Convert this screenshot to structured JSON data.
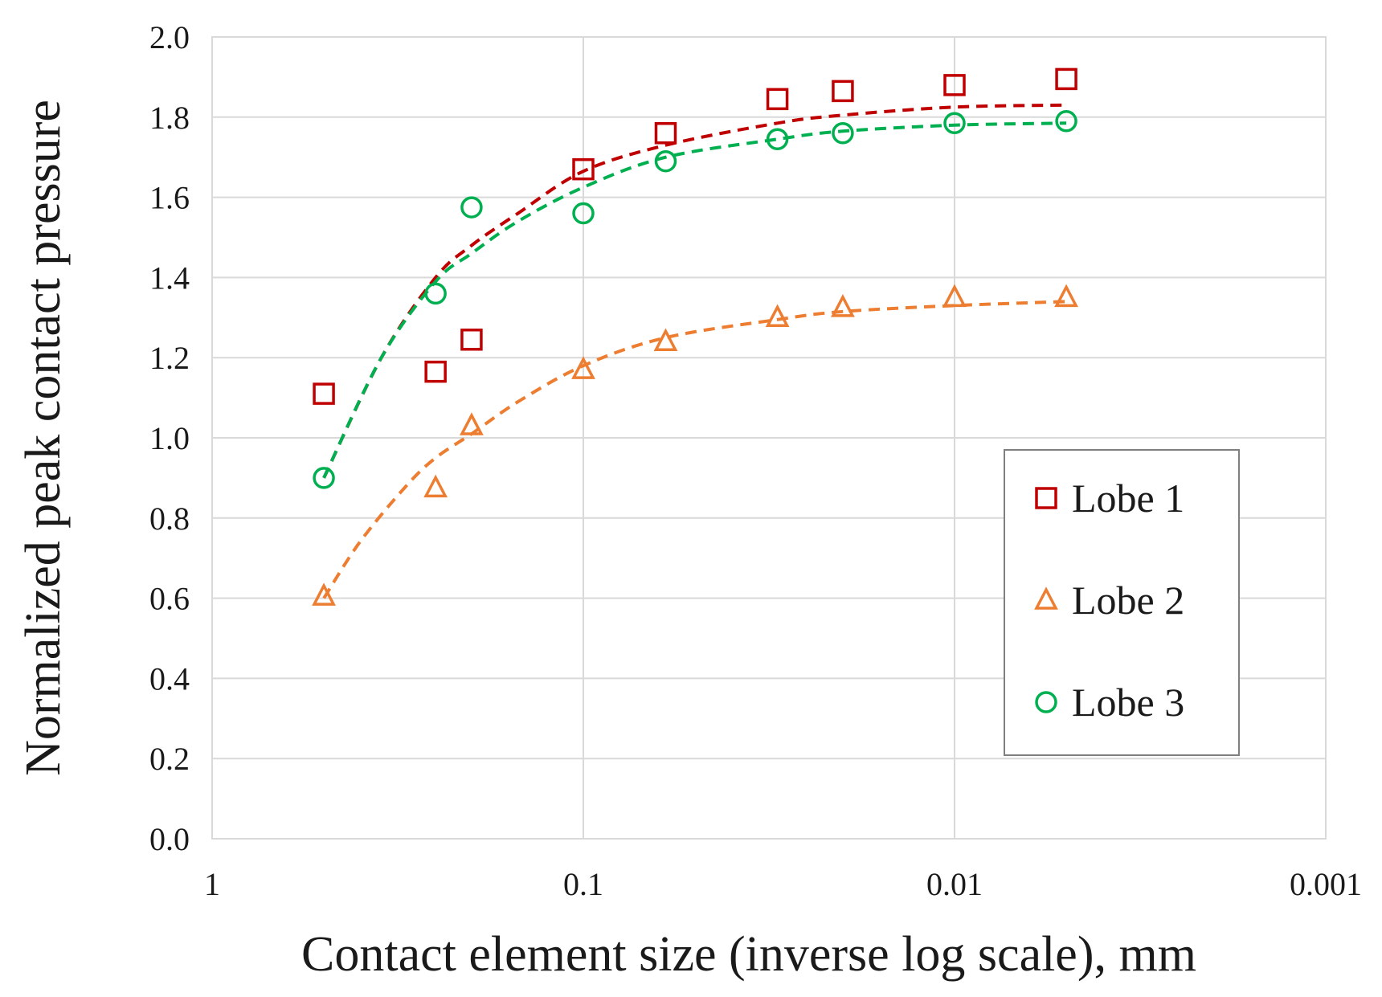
{
  "chart_data": {
    "type": "scatter",
    "title": "",
    "xlabel": "Contact element size (inverse log scale), mm",
    "ylabel": "Normalized peak contact pressure",
    "x_scale": "log-reversed",
    "xlim": [
      1,
      0.001
    ],
    "ylim": [
      0,
      2.0
    ],
    "x_ticks": [
      1,
      0.1,
      0.01,
      0.001
    ],
    "x_tick_labels": [
      "1",
      "0.1",
      "0.01",
      "0.001"
    ],
    "y_ticks": [
      0,
      0.2,
      0.4,
      0.6,
      0.8,
      1.0,
      1.2,
      1.4,
      1.6,
      1.8,
      2.0
    ],
    "y_tick_labels": [
      "0.0",
      "0.2",
      "0.4",
      "0.6",
      "0.8",
      "1.0",
      "1.2",
      "1.4",
      "1.6",
      "1.8",
      "2.0"
    ],
    "grid": true,
    "legend_position": "right",
    "series": [
      {
        "name": "Lobe 1",
        "marker": "square",
        "color": "#c00000",
        "x": [
          0.5,
          0.25,
          0.2,
          0.1,
          0.06,
          0.03,
          0.02,
          0.01,
          0.005
        ],
        "y": [
          1.11,
          1.165,
          1.245,
          1.67,
          1.76,
          1.845,
          1.865,
          1.88,
          1.895
        ],
        "trend": {
          "style": "dashed",
          "x": [
            0.5,
            0.35,
            0.25,
            0.2,
            0.15,
            0.1,
            0.06,
            0.03,
            0.02,
            0.01,
            0.005
          ],
          "y": [
            0.9,
            1.2,
            1.4,
            1.48,
            1.56,
            1.665,
            1.73,
            1.785,
            1.805,
            1.825,
            1.83
          ]
        }
      },
      {
        "name": "Lobe 2",
        "marker": "triangle",
        "color": "#ed7d31",
        "x": [
          0.5,
          0.25,
          0.2,
          0.1,
          0.06,
          0.03,
          0.02,
          0.01,
          0.005
        ],
        "y": [
          0.605,
          0.875,
          1.03,
          1.17,
          1.24,
          1.3,
          1.325,
          1.35,
          1.35
        ],
        "trend": {
          "style": "dashed",
          "x": [
            0.5,
            0.4,
            0.3,
            0.25,
            0.2,
            0.15,
            0.1,
            0.06,
            0.03,
            0.02,
            0.01,
            0.005
          ],
          "y": [
            0.6,
            0.74,
            0.88,
            0.95,
            1.01,
            1.09,
            1.18,
            1.25,
            1.295,
            1.315,
            1.33,
            1.34
          ]
        }
      },
      {
        "name": "Lobe 3",
        "marker": "circle",
        "color": "#00b050",
        "x": [
          0.5,
          0.25,
          0.2,
          0.1,
          0.06,
          0.03,
          0.02,
          0.01,
          0.005
        ],
        "y": [
          0.9,
          1.36,
          1.575,
          1.56,
          1.69,
          1.745,
          1.76,
          1.785,
          1.79
        ],
        "trend": {
          "style": "dashed",
          "x": [
            0.5,
            0.35,
            0.25,
            0.2,
            0.15,
            0.1,
            0.06,
            0.03,
            0.02,
            0.01,
            0.005
          ],
          "y": [
            0.9,
            1.2,
            1.39,
            1.46,
            1.54,
            1.625,
            1.7,
            1.745,
            1.765,
            1.78,
            1.785
          ]
        }
      }
    ]
  }
}
